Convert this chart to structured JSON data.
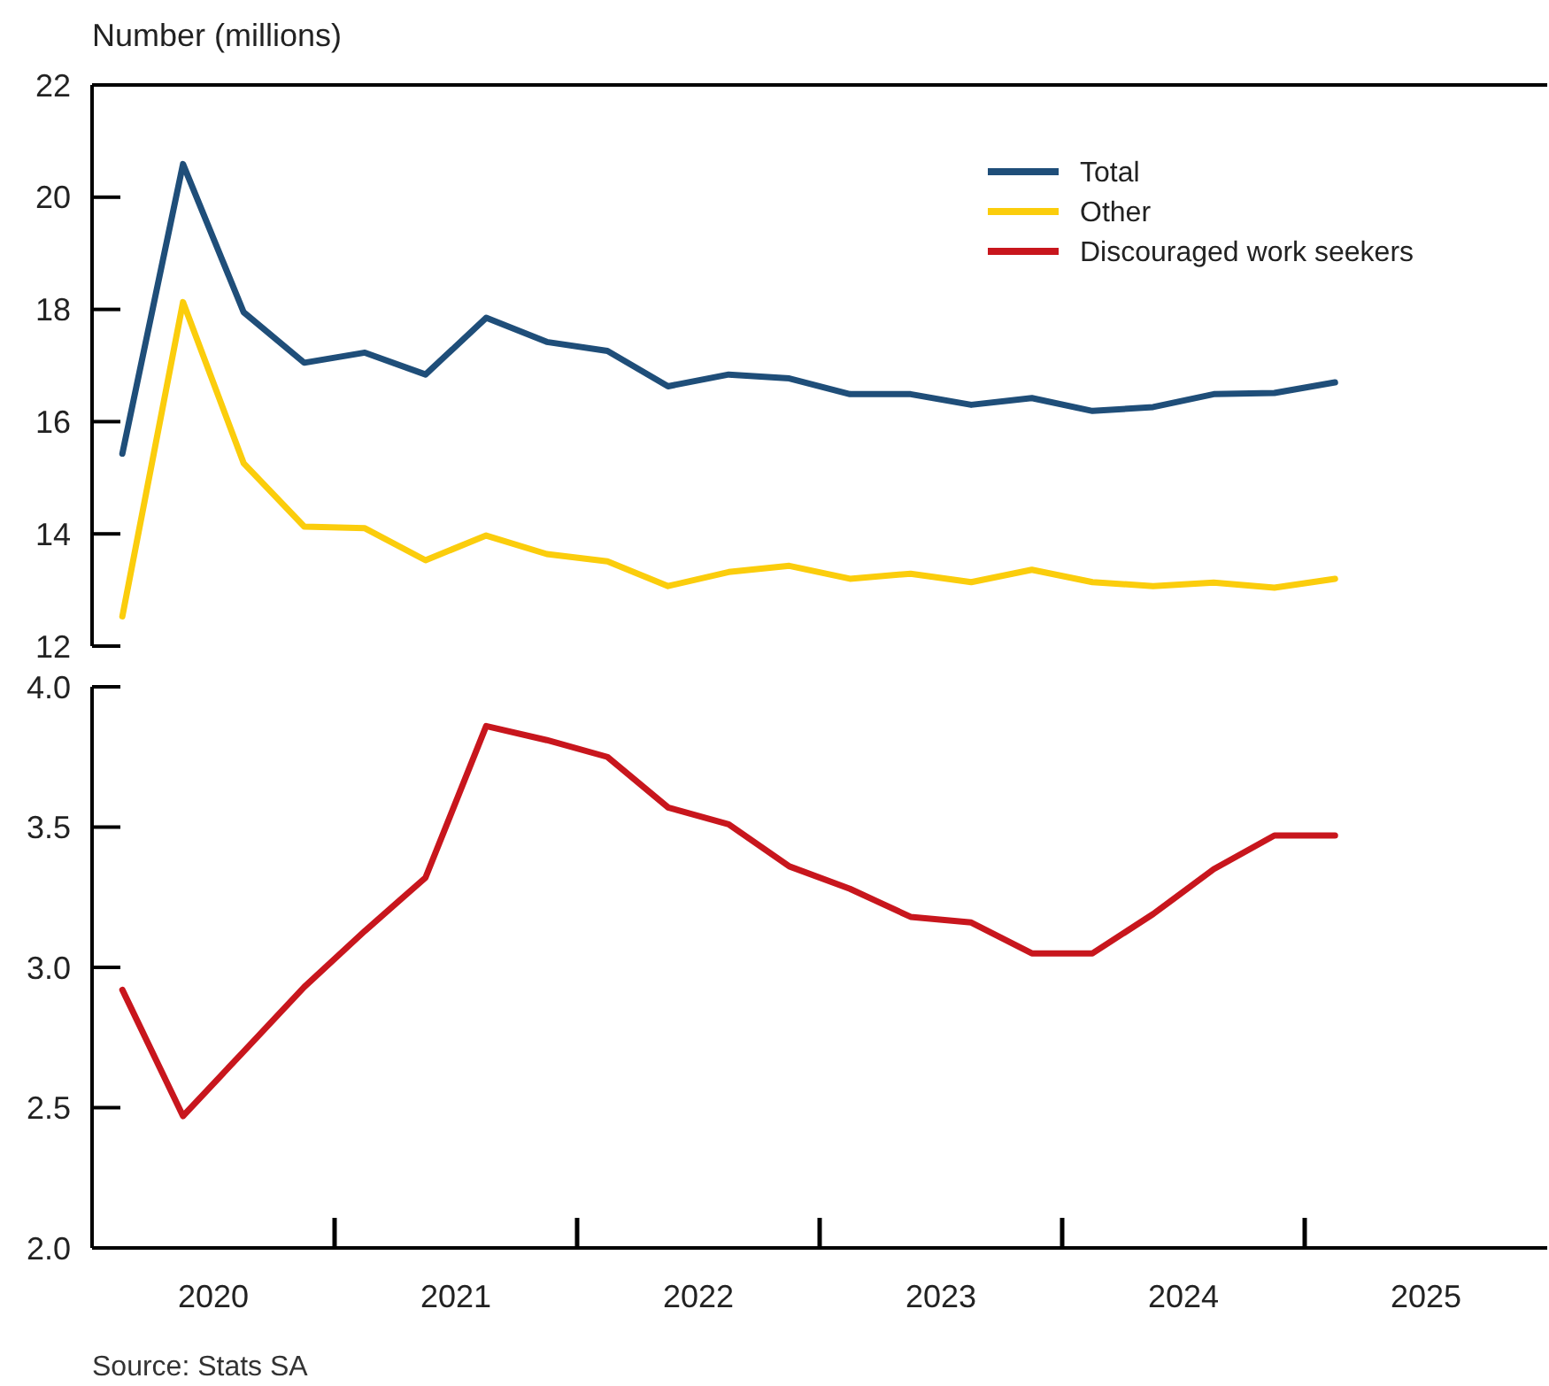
{
  "chart_data": [
    {
      "type": "line",
      "ylabel": "Number (millions)",
      "x": [
        2020.125,
        2020.375,
        2020.625,
        2020.875,
        2021.125,
        2021.375,
        2021.625,
        2021.875,
        2022.125,
        2022.375,
        2022.625,
        2022.875,
        2023.125,
        2023.375,
        2023.625,
        2023.875,
        2024.125,
        2024.375,
        2024.625,
        2024.875,
        2025.125
      ],
      "series": [
        {
          "name": "Total",
          "color": "#1f4e79",
          "values": [
            15.43,
            20.59,
            17.95,
            17.05,
            17.23,
            16.84,
            17.85,
            17.42,
            17.26,
            16.63,
            16.84,
            16.77,
            16.49,
            16.49,
            16.3,
            16.42,
            16.19,
            16.26,
            16.49,
            16.51,
            16.7
          ]
        },
        {
          "name": "Other",
          "color": "#fbcd0c",
          "values": [
            12.53,
            18.13,
            15.26,
            14.13,
            14.1,
            13.53,
            13.97,
            13.64,
            13.51,
            13.07,
            13.32,
            13.43,
            13.2,
            13.29,
            13.14,
            13.36,
            13.14,
            13.07,
            13.13,
            13.04,
            13.2
          ]
        }
      ],
      "xlim": [
        2020,
        2026
      ],
      "ylim": [
        12,
        22
      ],
      "yticks": [
        12,
        14,
        16,
        18,
        20,
        22
      ],
      "tick_labels": "y",
      "legend": "top right",
      "grid": false
    },
    {
      "type": "line",
      "x": [
        2020.125,
        2020.375,
        2020.625,
        2020.875,
        2021.125,
        2021.375,
        2021.625,
        2021.875,
        2022.125,
        2022.375,
        2022.625,
        2022.875,
        2023.125,
        2023.375,
        2023.625,
        2023.875,
        2024.125,
        2024.375,
        2024.625,
        2024.875,
        2025.125
      ],
      "series": [
        {
          "name": "Discouraged work seekers",
          "color": "#c8161d",
          "values": [
            2.92,
            2.47,
            2.7,
            2.93,
            3.13,
            3.32,
            3.86,
            3.81,
            3.75,
            3.57,
            3.51,
            3.36,
            3.28,
            3.18,
            3.16,
            3.05,
            3.05,
            3.19,
            3.35,
            3.47,
            3.47
          ]
        }
      ],
      "xlim": [
        2020,
        2026
      ],
      "xticks": [
        {
          "value": 2020.5,
          "label": "2020"
        },
        {
          "value": 2021.5,
          "label": "2021"
        },
        {
          "value": 2022.5,
          "label": "2022"
        },
        {
          "value": 2023.5,
          "label": "2023"
        },
        {
          "value": 2024.5,
          "label": "2024"
        },
        {
          "value": 2025.5,
          "label": "2025"
        }
      ],
      "ylim": [
        2,
        4
      ],
      "yticks": [
        {
          "value": 2,
          "label": "2.0"
        },
        {
          "value": 2.5,
          "label": "2.5"
        },
        {
          "value": 3,
          "label": "3.0"
        },
        {
          "value": 3.5,
          "label": "3.5"
        },
        {
          "value": 4,
          "label": "4.0"
        }
      ],
      "legend": "top right",
      "grid": false,
      "annotations": [
        "Source: Stats SA"
      ]
    }
  ]
}
